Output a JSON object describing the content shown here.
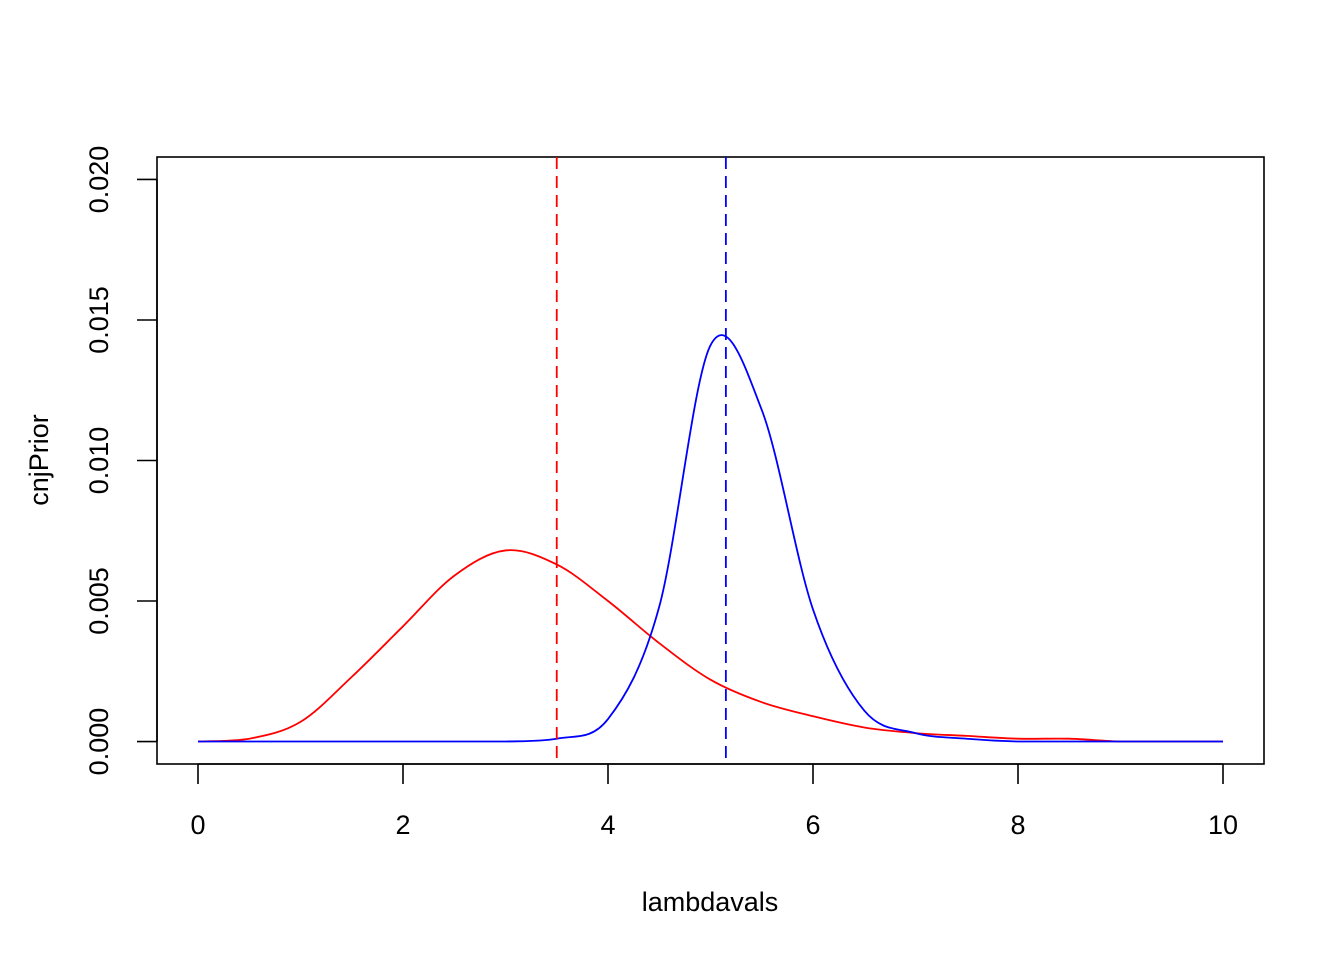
{
  "chart_data": {
    "type": "line",
    "title": "",
    "xlabel": "lambdavals",
    "ylabel": "cnjPrior",
    "xlim": [
      -0.4,
      10.4
    ],
    "ylim": [
      -0.0008,
      0.0208
    ],
    "x_ticks": [
      0,
      2,
      4,
      6,
      8,
      10
    ],
    "x_tick_labels": [
      "0",
      "2",
      "4",
      "6",
      "8",
      "10"
    ],
    "y_ticks": [
      0,
      0.005,
      0.01,
      0.015,
      0.02
    ],
    "y_tick_labels": [
      "0.000",
      "0.005",
      "0.010",
      "0.015",
      "0.020"
    ],
    "grid": false,
    "legend": "none",
    "x": [
      0,
      0.5,
      1,
      1.5,
      2,
      2.5,
      3,
      3.5,
      4,
      4.5,
      5,
      5.5,
      6,
      6.5,
      7,
      7.5,
      8,
      8.5,
      9,
      9.5,
      10
    ],
    "series": [
      {
        "color": "#ff0000",
        "values": [
          0,
          0.0001,
          0.0007,
          0.0023,
          0.0041,
          0.0059,
          0.0068,
          0.0063,
          0.005,
          0.0035,
          0.0022,
          0.0014,
          0.0009,
          0.0005,
          0.0003,
          0.0002,
          0.0001,
          0.0001,
          0,
          0,
          0
        ]
      },
      {
        "color": "#0000ff",
        "values": [
          0,
          0,
          0,
          0,
          0,
          0,
          0,
          0.0001,
          0.0008,
          0.0048,
          0.0141,
          0.0118,
          0.0047,
          0.0011,
          0.0003,
          0.0001,
          0,
          0,
          0,
          0,
          0
        ]
      }
    ],
    "vlines": [
      {
        "x": 3.5,
        "color": "#ff0000",
        "style": "dashed"
      },
      {
        "x": 5.15,
        "color": "#0000ff",
        "style": "dashed"
      }
    ]
  }
}
